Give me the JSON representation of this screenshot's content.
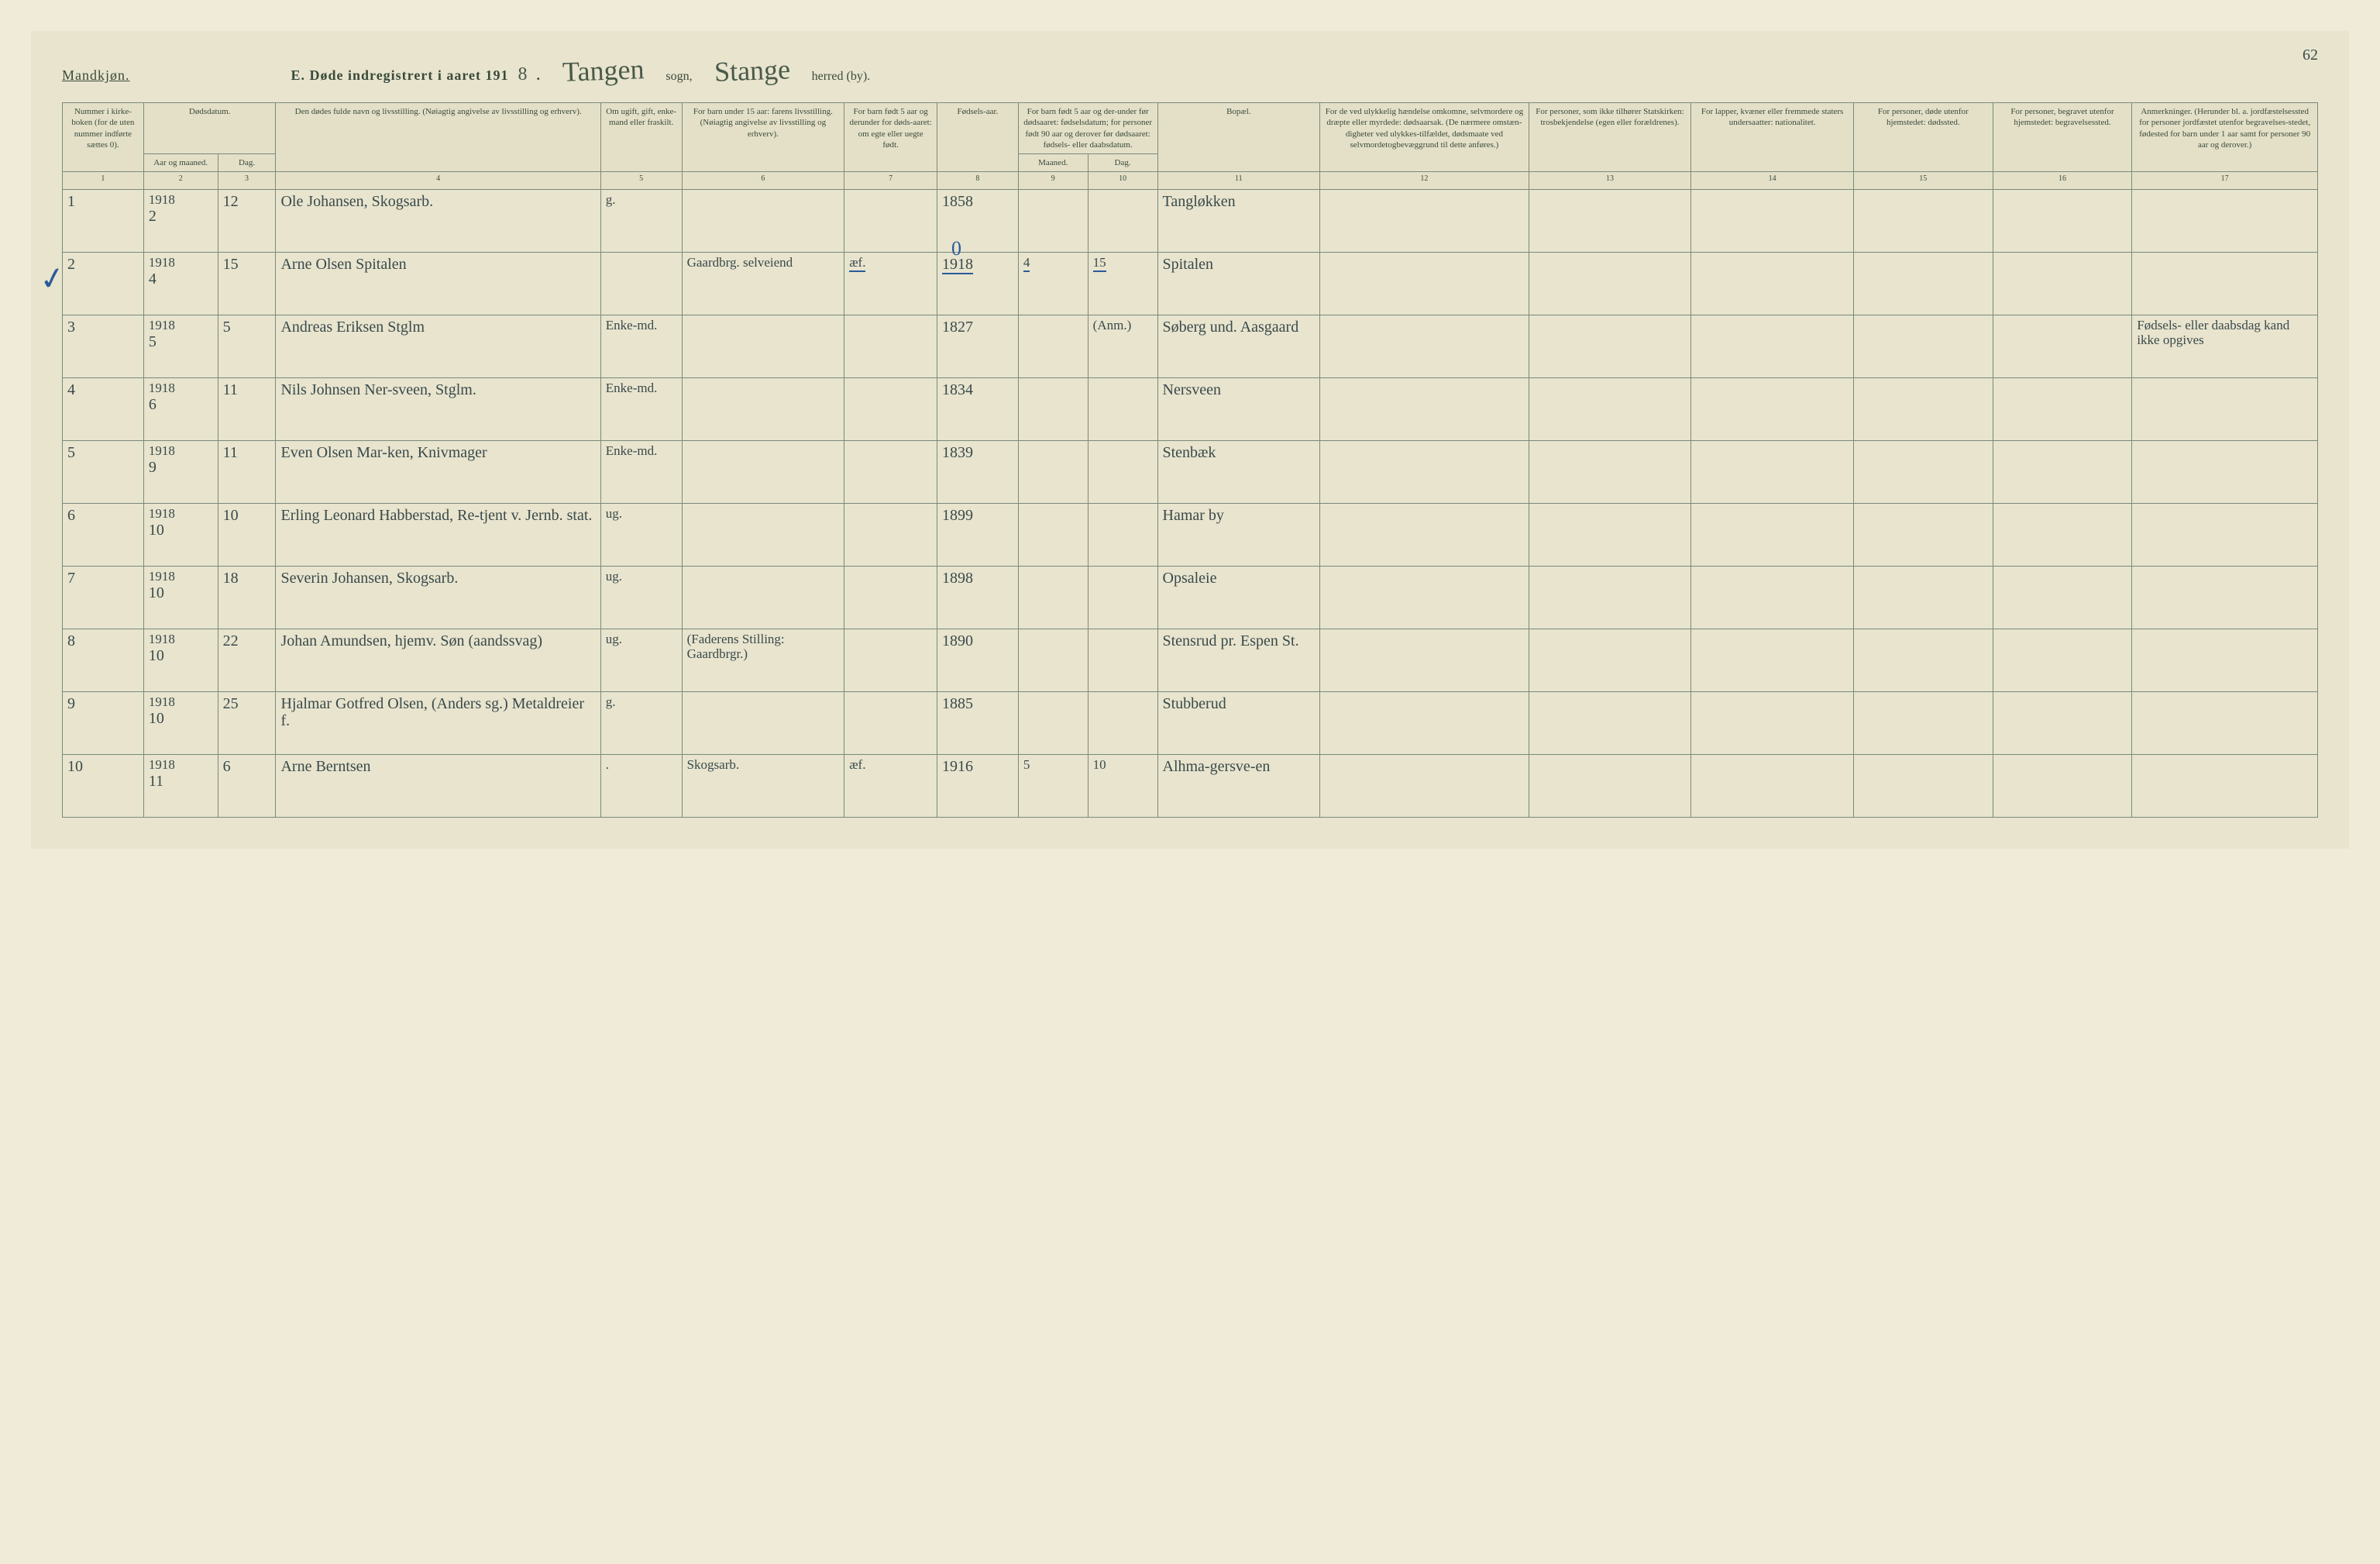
{
  "header": {
    "gender": "Mandkjøn.",
    "titlePrefix": "E.  Døde indregistrert i aaret 191",
    "yearSuffix": "8",
    "period": ".",
    "sognValue": "Tangen",
    "sognLabel": "sogn,",
    "herredValue": "Stange",
    "herredLabel": "herred (by).",
    "pageNumber": "62"
  },
  "columnHeaders": {
    "c1": "Nummer i kirke-boken (for de uten nummer indførte sættes 0).",
    "c2": "Dødsdatum.",
    "c2a": "Aar og maaned.",
    "c2b": "Dag.",
    "c3": "Den dødes fulde navn og livsstilling. (Nøiagtig angivelse av livsstilling og erhverv).",
    "c4": "Om ugift, gift, enke-mand eller fraskilt.",
    "c5": "For barn under 15 aar: farens livsstilling. (Nøiagtig angivelse av livsstilling og erhverv).",
    "c6": "For barn født 5 aar og derunder for døds-aaret: om egte eller uegte født.",
    "c7": "Fødsels-aar.",
    "c8_9": "For barn født 5 aar og der-under før dødsaaret: fødselsdatum; for personer født 90 aar og derover før dødsaaret: fødsels- eller daabsdatum.",
    "c8": "Maaned.",
    "c9": "Dag.",
    "c10": "Bopæl.",
    "c11": "For de ved ulykkelig hændelse omkomne, selvmordere og dræpte eller myrdede: dødsaarsak. (De nærmere omstæn-digheter ved ulykkes-tilfældet, dødsmaate ved selvmordetogbevæggrund til dette anføres.)",
    "c12": "For personer, som ikke tilhører Statskirken: trosbekjendelse (egen eller forældrenes).",
    "c13": "For lapper, kvæner eller fremmede staters undersaatter: nationalitet.",
    "c14": "For personer, døde utenfor hjemstedet: dødssted.",
    "c15": "For personer, begravet utenfor hjemstedet: begravelsessted.",
    "c16": "Anmerkninger. (Herunder bl. a. jordfæstelsessted for personer jordfæstet utenfor begravelses-stedet, fødested for barn under 1 aar samt for personer 90 aar og derover.)"
  },
  "colNums": [
    "1",
    "2",
    "3",
    "4",
    "5",
    "6",
    "7",
    "8",
    "9",
    "10",
    "11",
    "12",
    "13",
    "14",
    "15",
    "16",
    "17"
  ],
  "rows": [
    {
      "n": "1",
      "yr": "1918",
      "mo": "2",
      "day": "12",
      "name": "Ole Johansen, Skogsarb.",
      "status": "g.",
      "parent": "",
      "egte": "",
      "birth": "1858",
      "bm": "",
      "bd": "",
      "place": "Tangløkken",
      "c11": "",
      "c12": "",
      "c13": "",
      "c14": "",
      "c15": "",
      "c16": ""
    },
    {
      "n": "2",
      "yr": "1918",
      "mo": "4",
      "day": "15",
      "name": "Arne Olsen Spitalen",
      "status": "",
      "parent": "Gaardbrg. selveiend",
      "egte": "æf.",
      "birth": "1918",
      "bm": "4",
      "bd": "15",
      "place": "Spitalen",
      "c11": "",
      "c12": "",
      "c13": "",
      "c14": "",
      "c15": "",
      "c16": "",
      "check": true,
      "blueOverBirth": "0",
      "blueUnderline": true
    },
    {
      "n": "3",
      "yr": "1918",
      "mo": "5",
      "day": "5",
      "name": "Andreas Eriksen Stglm",
      "status": "Enke-md.",
      "parent": "",
      "egte": "",
      "birth": "1827",
      "bm": "",
      "bd": "(Anm.)",
      "place": "Søberg und. Aasgaard",
      "c11": "",
      "c12": "",
      "c13": "",
      "c14": "",
      "c15": "",
      "c16": "Fødsels- eller daabsdag kand ikke opgives"
    },
    {
      "n": "4",
      "yr": "1918",
      "mo": "6",
      "day": "11",
      "name": "Nils Johnsen Ner-sveen, Stglm.",
      "status": "Enke-md.",
      "parent": "",
      "egte": "",
      "birth": "1834",
      "bm": "",
      "bd": "",
      "place": "Nersveen",
      "c11": "",
      "c12": "",
      "c13": "",
      "c14": "",
      "c15": "",
      "c16": ""
    },
    {
      "n": "5",
      "yr": "1918",
      "mo": "9",
      "day": "11",
      "name": "Even Olsen Mar-ken, Knivmager",
      "status": "Enke-md.",
      "parent": "",
      "egte": "",
      "birth": "1839",
      "bm": "",
      "bd": "",
      "place": "Stenbæk",
      "c11": "",
      "c12": "",
      "c13": "",
      "c14": "",
      "c15": "",
      "c16": ""
    },
    {
      "n": "6",
      "yr": "1918",
      "mo": "10",
      "day": "10",
      "name": "Erling Leonard Habberstad, Re-tjent v. Jernb. stat.",
      "status": "ug.",
      "parent": "",
      "egte": "",
      "birth": "1899",
      "bm": "",
      "bd": "",
      "place": "Hamar by",
      "c11": "",
      "c12": "",
      "c13": "",
      "c14": "",
      "c15": "",
      "c16": ""
    },
    {
      "n": "7",
      "yr": "1918",
      "mo": "10",
      "day": "18",
      "name": "Severin Johansen, Skogsarb.",
      "status": "ug.",
      "parent": "",
      "egte": "",
      "birth": "1898",
      "bm": "",
      "bd": "",
      "place": "Opsaleie",
      "c11": "",
      "c12": "",
      "c13": "",
      "c14": "",
      "c15": "",
      "c16": ""
    },
    {
      "n": "8",
      "yr": "1918",
      "mo": "10",
      "day": "22",
      "name": "Johan Amundsen, hjemv. Søn (aandssvag)",
      "status": "ug.",
      "parent": "(Faderens Stilling: Gaardbrgr.)",
      "egte": "",
      "birth": "1890",
      "bm": "",
      "bd": "",
      "place": "Stensrud pr. Espen St.",
      "c11": "",
      "c12": "",
      "c13": "",
      "c14": "",
      "c15": "",
      "c16": ""
    },
    {
      "n": "9",
      "yr": "1918",
      "mo": "10",
      "day": "25",
      "name": "Hjalmar Gotfred Olsen, (Anders sg.) Metaldreier f.",
      "status": "g.",
      "parent": "",
      "egte": "",
      "birth": "1885",
      "bm": "",
      "bd": "",
      "place": "Stubberud",
      "c11": "",
      "c12": "",
      "c13": "",
      "c14": "",
      "c15": "",
      "c16": ""
    },
    {
      "n": "10",
      "yr": "1918",
      "mo": "11",
      "day": "6",
      "name": "Arne Berntsen",
      "status": ".",
      "parent": "Skogsarb.",
      "egte": "æf.",
      "birth": "1916",
      "bm": "5",
      "bd": "10",
      "place": "Alhma-gersve-en",
      "c11": "",
      "c12": "",
      "c13": "",
      "c14": "",
      "c15": "",
      "c16": ""
    }
  ]
}
